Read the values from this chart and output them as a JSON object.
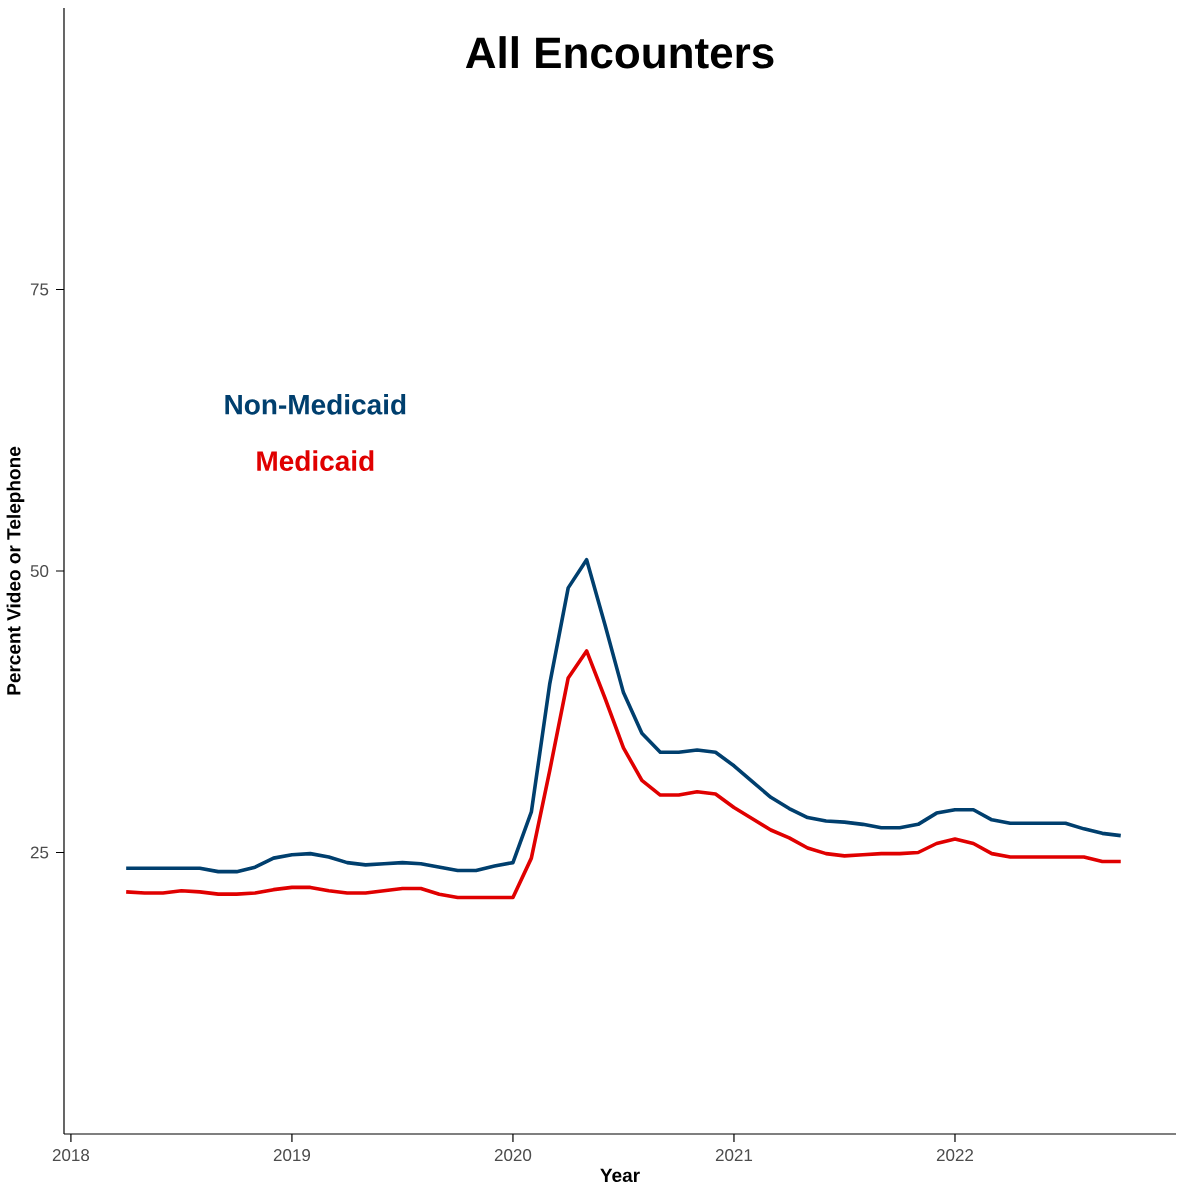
{
  "chart_data": {
    "type": "line",
    "title": "All Encounters",
    "xlabel": "Year",
    "ylabel": "Percent Video or Telephone",
    "x": [
      "2018-04",
      "2018-05",
      "2018-06",
      "2018-07",
      "2018-08",
      "2018-09",
      "2018-10",
      "2018-11",
      "2018-12",
      "2019-01",
      "2019-02",
      "2019-03",
      "2019-04",
      "2019-05",
      "2019-06",
      "2019-07",
      "2019-08",
      "2019-09",
      "2019-10",
      "2019-11",
      "2019-12",
      "2020-01",
      "2020-02",
      "2020-03",
      "2020-04",
      "2020-05",
      "2020-06",
      "2020-07",
      "2020-08",
      "2020-09",
      "2020-10",
      "2020-11",
      "2020-12",
      "2021-01",
      "2021-02",
      "2021-03",
      "2021-04",
      "2021-05",
      "2021-06",
      "2021-07",
      "2021-08",
      "2021-09",
      "2021-10",
      "2021-11",
      "2021-12",
      "2022-01",
      "2022-02",
      "2022-03",
      "2022-04",
      "2022-05",
      "2022-06",
      "2022-07",
      "2022-08",
      "2022-09",
      "2022-10"
    ],
    "series": [
      {
        "name": "Non-Medicaid",
        "color": "#003f6e",
        "values": [
          23.6,
          23.6,
          23.6,
          23.6,
          23.6,
          23.3,
          23.3,
          23.7,
          24.5,
          24.8,
          24.9,
          24.6,
          24.1,
          23.9,
          24.0,
          24.1,
          24.0,
          23.7,
          23.4,
          23.4,
          23.8,
          24.1,
          28.6,
          40.0,
          48.5,
          51.0,
          45.2,
          39.2,
          35.6,
          33.9,
          33.9,
          34.1,
          33.9,
          32.7,
          31.3,
          29.9,
          28.9,
          28.1,
          27.8,
          27.7,
          27.5,
          27.2,
          27.2,
          27.5,
          28.5,
          28.8,
          28.8,
          27.9,
          27.6,
          27.6,
          27.6,
          27.6,
          27.1,
          26.7,
          26.5
        ]
      },
      {
        "name": "Medicaid",
        "color": "#e00000",
        "values": [
          21.5,
          21.4,
          21.4,
          21.6,
          21.5,
          21.3,
          21.3,
          21.4,
          21.7,
          21.9,
          21.9,
          21.6,
          21.4,
          21.4,
          21.6,
          21.8,
          21.8,
          21.3,
          21.0,
          21.0,
          21.0,
          21.0,
          24.5,
          32.3,
          40.5,
          42.9,
          38.7,
          34.3,
          31.4,
          30.1,
          30.1,
          30.4,
          30.2,
          29.0,
          28.0,
          27.0,
          26.3,
          25.4,
          24.9,
          24.7,
          24.8,
          24.9,
          24.9,
          25.0,
          25.8,
          26.2,
          25.8,
          24.9,
          24.6,
          24.6,
          24.6,
          24.6,
          24.6,
          24.2,
          24.2
        ]
      }
    ],
    "xlim": [
      "2017-12-20",
      "2023-01-01"
    ],
    "xticks": [
      {
        "value": "2018-01-01",
        "label": "2018"
      },
      {
        "value": "2019-01-01",
        "label": "2019"
      },
      {
        "value": "2020-01-01",
        "label": "2020"
      },
      {
        "value": "2021-01-01",
        "label": "2021"
      },
      {
        "value": "2022-01-01",
        "label": "2022"
      }
    ],
    "ylim": [
      0,
      100
    ],
    "yticks": [
      25,
      50,
      75
    ],
    "legend": "top left",
    "grid": false,
    "marker": "none",
    "line_style": "solid"
  }
}
